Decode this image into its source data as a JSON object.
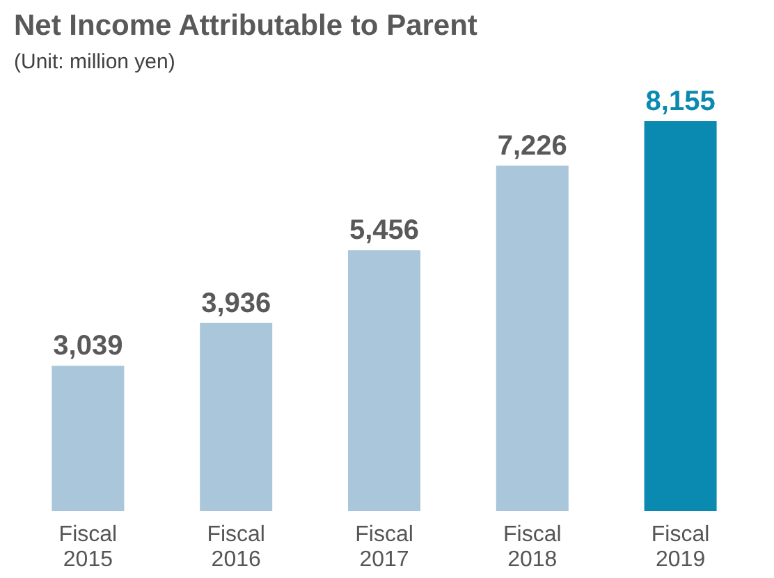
{
  "chart_data": {
    "type": "bar",
    "title": "Net Income Attributable to Parent",
    "subtitle": "(Unit: million yen)",
    "categories": [
      "Fiscal 2015",
      "Fiscal 2016",
      "Fiscal 2017",
      "Fiscal 2018",
      "Fiscal 2019"
    ],
    "values": [
      3039,
      3936,
      5456,
      7226,
      8155
    ],
    "colors": [
      "#a9c6da",
      "#a9c6da",
      "#a9c6da",
      "#a9c6da",
      "#0a8ab0"
    ],
    "value_labels": [
      "3,039",
      "3,936",
      "5,456",
      "7,226",
      "8,155"
    ],
    "grid": false
  }
}
